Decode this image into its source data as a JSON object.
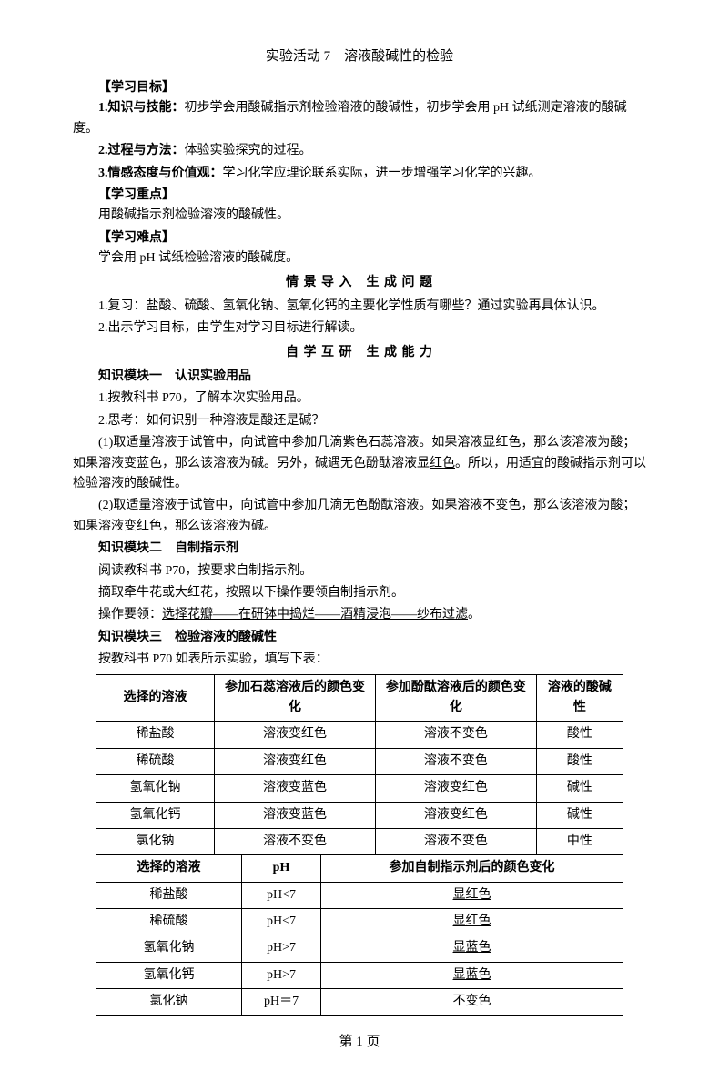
{
  "title": "实验活动 7　溶液酸碱性的检验",
  "obj_header": "【学习目标】",
  "obj1": {
    "label": "1.知识与技能：",
    "text": "初步学会用酸碱指示剂检验溶液的酸碱性，初步学会用 pH 试纸测定溶液的酸碱度。"
  },
  "obj2": {
    "label": "2.过程与方法：",
    "text": "体验实验探究的过程。"
  },
  "obj3": {
    "label": "3.情感态度与价值观：",
    "text": "学习化学应理论联系实际，进一步增强学习化学的兴趣。"
  },
  "keypoint_header": "【学习重点】",
  "keypoint_text": "用酸碱指示剂检验溶液的酸碱性。",
  "diff_header": "【学习难点】",
  "diff_text": "学会用 pH 试纸检验溶液的酸碱度。",
  "scene_heading": "情 景 导 入　生 成 问 题",
  "s1": "1.复习：盐酸、硫酸、氢氧化钠、氢氧化钙的主要化学性质有哪些？通过实验再具体认识。",
  "s2": "2.出示学习目标，由学生对学习目标进行解读。",
  "self_heading": "自 学 互 研　生 成 能 力",
  "mod1_title": "知识模块一　认识实验用品",
  "mod1_l1": "1.按教科书 P70，了解本次实验用品。",
  "mod1_l2": "2.思考：如何识别一种溶液是酸还是碱？",
  "mod1_p1a": "(1)取适量溶液于试管中，向试管中参加几滴紫色石蕊溶液。如果溶液显红色，那么该溶液为酸；如果溶液变蓝色，那么该溶液为碱。另外，碱遇无色酚酞溶液显",
  "mod1_p1u": "红色",
  "mod1_p1b": "。所以，用适宜的酸碱指示剂可以检验溶液的酸碱性。",
  "mod1_p2": "(2)取适量溶液于试管中，向试管中参加几滴无色酚酞溶液。如果溶液不变色，那么该溶液为酸；如果溶液变红色，那么该溶液为碱。",
  "mod2_title": "知识模块二　自制指示剂",
  "mod2_l1": "阅读教科书 P70，按要求自制指示剂。",
  "mod2_l2": "摘取牵牛花或大红花，按照以下操作要领自制指示剂。",
  "mod2_l3a": "操作要领：",
  "mod2_l3u": "选择花瓣——在研钵中捣烂——酒精浸泡——纱布过滤",
  "mod2_l3b": "。",
  "mod3_title": "知识模块三　检验溶液的酸碱性",
  "mod3_l1": "按教科书 P70 如表所示实验，填写下表：",
  "table1": {
    "headers": [
      "选择的溶液",
      "参加石蕊溶液后的颜色变化",
      "参加酚酞溶液后的颜色变化",
      "溶液的酸碱性"
    ],
    "rows": [
      [
        "稀盐酸",
        "溶液变红色",
        "溶液不变色",
        "酸性"
      ],
      [
        "稀硫酸",
        "溶液变红色",
        "溶液不变色",
        "酸性"
      ],
      [
        "氢氧化钠",
        "溶液变蓝色",
        "溶液变红色",
        "碱性"
      ],
      [
        "氢氧化钙",
        "溶液变蓝色",
        "溶液变红色",
        "碱性"
      ],
      [
        "氯化钠",
        "溶液不变色",
        "溶液不变色",
        "中性"
      ]
    ]
  },
  "table2": {
    "headers": [
      "选择的溶液",
      "pH",
      "参加自制指示剂后的颜色变化"
    ],
    "rows": [
      {
        "c0": "稀盐酸",
        "c1": "pH<7",
        "c2": "显红色",
        "underline": true
      },
      {
        "c0": "稀硫酸",
        "c1": "pH<7",
        "c2": "显红色",
        "underline": true
      },
      {
        "c0": "氢氧化钠",
        "c1": "pH>7",
        "c2": "显蓝色",
        "underline": true
      },
      {
        "c0": "氢氧化钙",
        "c1": "pH>7",
        "c2": "显蓝色",
        "underline": true
      },
      {
        "c0": "氯化钠",
        "c1": "pH＝7",
        "c2": "不变色",
        "underline": false
      }
    ]
  },
  "footer": "第 1 页"
}
